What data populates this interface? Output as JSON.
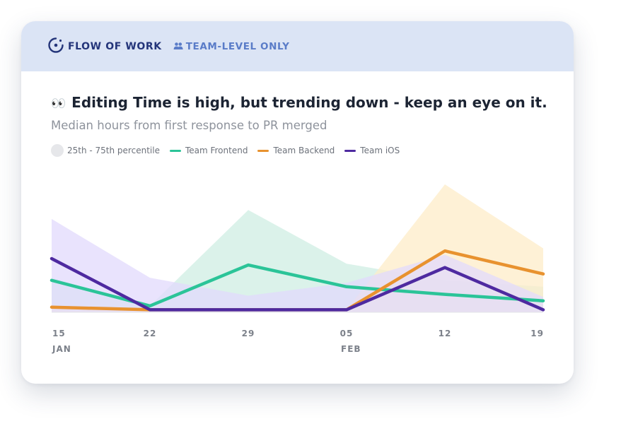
{
  "header": {
    "brand": "FLOW OF WORK",
    "scope": "TEAM-LEVEL ONLY"
  },
  "chart_data": {
    "type": "line",
    "title_emoji": "👀",
    "title": "Editing Time is high, but trending down - keep an eye on it.",
    "subtitle": "Median hours from first response to PR merged",
    "x_ticks": [
      {
        "label": "15",
        "month": "JAN"
      },
      {
        "label": "22",
        "month": ""
      },
      {
        "label": "29",
        "month": ""
      },
      {
        "label": "05",
        "month": "FEB"
      },
      {
        "label": "12",
        "month": ""
      },
      {
        "label": "19",
        "month": ""
      }
    ],
    "x": [
      "Jan 15",
      "Jan 22",
      "Jan 29",
      "Feb 05",
      "Feb 12",
      "Feb 19"
    ],
    "ylim": [
      0,
      100
    ],
    "band_label": "25th - 75th percentile",
    "series": [
      {
        "name": "Team Frontend",
        "color": "#2bc498",
        "band_color": "#cfeee3",
        "values": [
          25,
          5,
          37,
          20,
          14,
          9
        ],
        "band_low": [
          0,
          0,
          0,
          0,
          0,
          0
        ],
        "band_high": [
          27,
          5,
          80,
          38,
          25,
          20
        ]
      },
      {
        "name": "Team Backend",
        "color": "#e8922f",
        "band_color": "#fdecc8",
        "values": [
          4,
          2,
          2,
          2,
          48,
          30
        ],
        "band_low": [
          0,
          0,
          0,
          0,
          0,
          0
        ],
        "band_high": [
          4,
          2,
          2,
          2,
          100,
          50
        ]
      },
      {
        "name": "Team iOS",
        "color": "#4e2aa0",
        "band_color": "#e2dafc",
        "values": [
          42,
          2,
          2,
          2,
          35,
          2
        ],
        "band_low": [
          0,
          0,
          0,
          0,
          0,
          0
        ],
        "band_high": [
          73,
          27,
          13,
          23,
          45,
          12
        ]
      }
    ]
  }
}
